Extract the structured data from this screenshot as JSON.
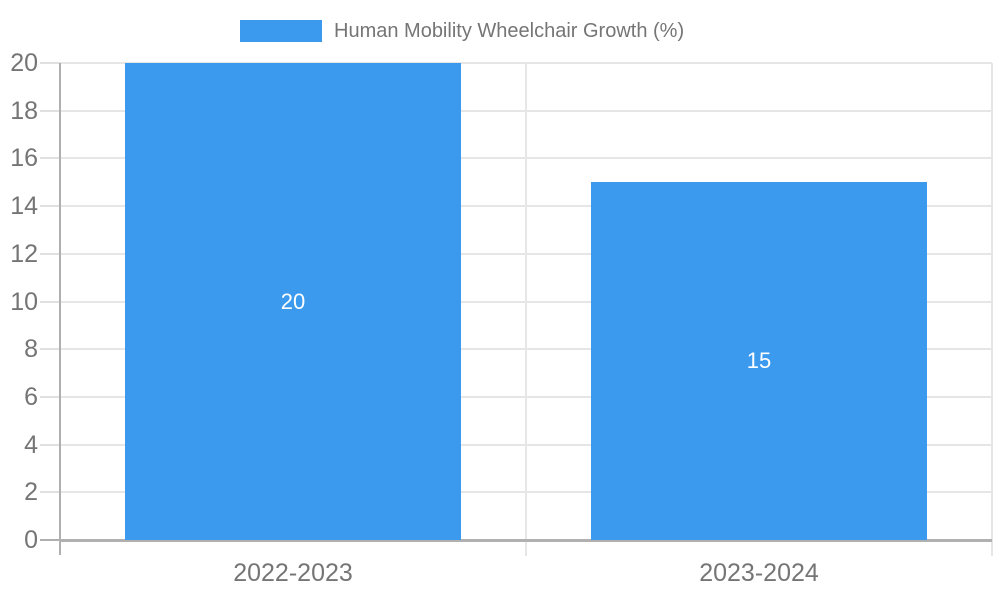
{
  "legend": {
    "label": "Human Mobility Wheelchair Growth (%)"
  },
  "chart_data": {
    "type": "bar",
    "title": "Human Mobility Wheelchair Growth (%)",
    "categories": [
      "2022-2023",
      "2023-2024"
    ],
    "series": [
      {
        "name": "Human Mobility Wheelchair Growth (%)",
        "values": [
          20,
          15
        ]
      }
    ],
    "bar_value_labels": [
      "20",
      "15"
    ],
    "xlabel": "",
    "ylabel": "",
    "ylim": [
      0,
      20
    ],
    "yticks": [
      0,
      2,
      4,
      6,
      8,
      10,
      12,
      14,
      16,
      18,
      20
    ],
    "grid": true,
    "legend_position": "top-center",
    "colors": {
      "bar": "#3B99EE",
      "bar_label": "#FFFFFF",
      "axis_text": "#757575",
      "axis_line": "#B0B0B0",
      "gridline": "#E6E6E6",
      "tick": "#E0E0E0",
      "background": "#FFFFFF"
    }
  }
}
